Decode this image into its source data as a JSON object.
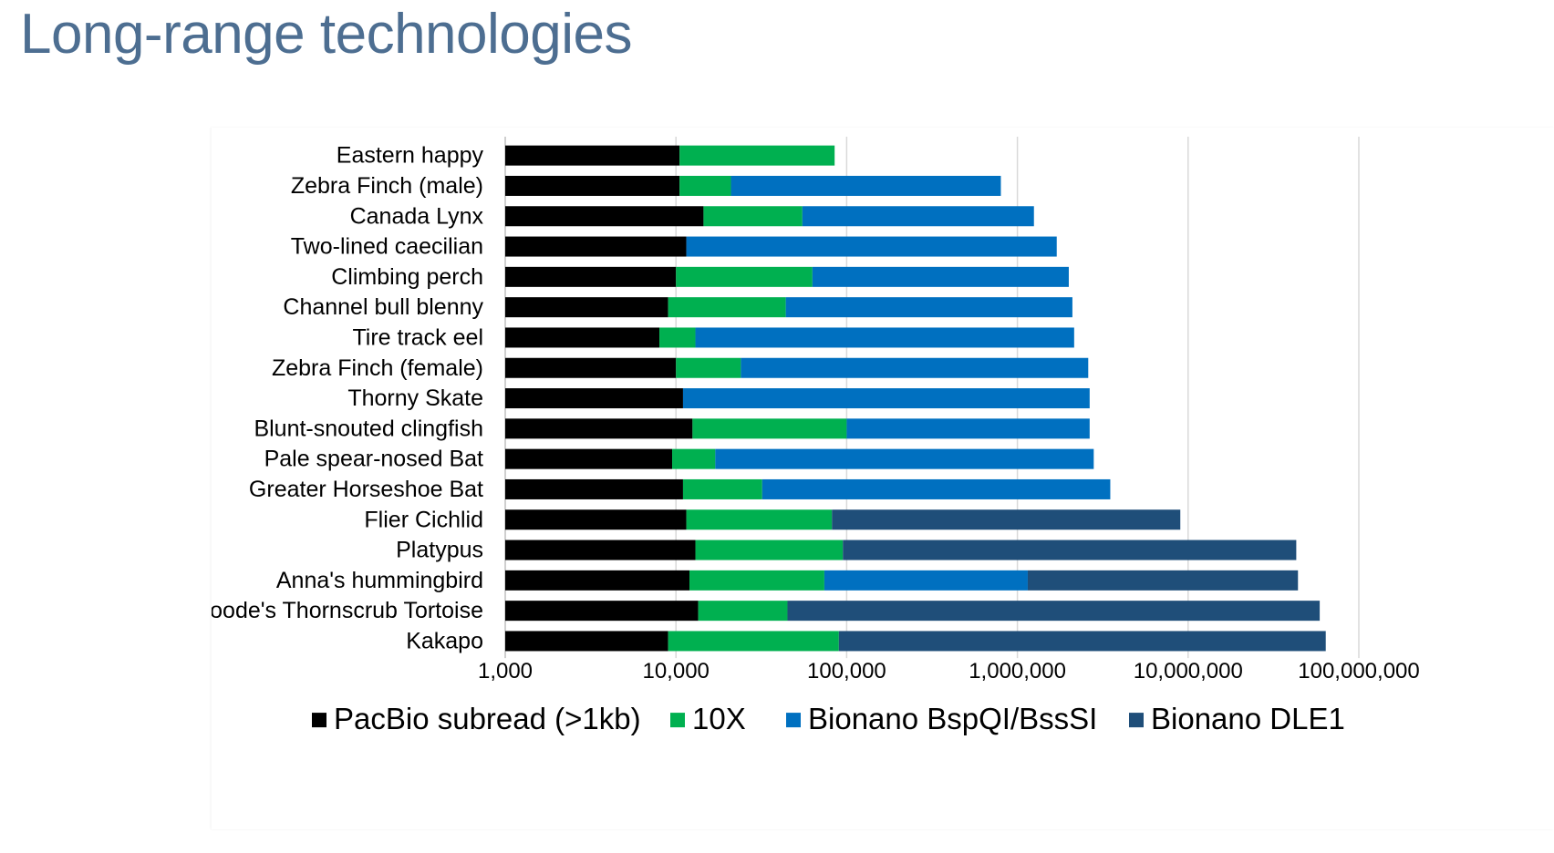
{
  "page": {
    "title": "Long-range technologies"
  },
  "chart_data": {
    "type": "bar",
    "orientation": "horizontal",
    "stacked": true,
    "x_scale": "log",
    "xlim": [
      1000,
      100000000
    ],
    "x_ticks": [
      1000,
      10000,
      100000,
      1000000,
      10000000,
      100000000
    ],
    "x_tick_labels": [
      "1,000",
      "10,000",
      "100,000",
      "1,000,000",
      "10,000,000",
      "100,000,000"
    ],
    "grid": "vertical",
    "legend_position": "bottom",
    "categories": [
      "Eastern happy",
      "Zebra Finch (male)",
      "Canada Lynx",
      "Two-lined caecilian",
      "Climbing perch",
      "Channel bull blenny",
      "Tire track eel",
      "Zebra Finch (female)",
      "Thorny Skate",
      "Blunt-snouted clingfish",
      "Pale spear-nosed Bat",
      "Greater Horseshoe Bat",
      "Flier Cichlid",
      "Platypus",
      "Anna's hummingbird",
      "Goode's Thornscrub Tortoise",
      "Kakapo"
    ],
    "series": [
      {
        "name": "PacBio subread (>1kb)",
        "color": "#000000",
        "values": [
          10500,
          10500,
          14500,
          11500,
          10000,
          9000,
          8000,
          10000,
          11000,
          12500,
          9500,
          11000,
          11500,
          13000,
          12000,
          13500,
          9000
        ]
      },
      {
        "name": "10X",
        "color": "#00b050",
        "values": [
          85000,
          21000,
          55000,
          null,
          63000,
          44000,
          13000,
          24000,
          null,
          100000,
          17000,
          32000,
          82000,
          95000,
          74000,
          45000,
          90000
        ]
      },
      {
        "name": "Bionano BspQI/BssSI",
        "color": "#0070c0",
        "values": [
          null,
          800000,
          1250000,
          1700000,
          2000000,
          2100000,
          2150000,
          2600000,
          2650000,
          2650000,
          2800000,
          3500000,
          null,
          null,
          1150000,
          null,
          null
        ]
      },
      {
        "name": "Bionano DLE1",
        "color": "#1f4e79",
        "values": [
          null,
          null,
          null,
          null,
          null,
          null,
          null,
          null,
          null,
          null,
          null,
          null,
          9000000,
          43000000,
          44000000,
          59000000,
          64000000
        ]
      }
    ]
  }
}
